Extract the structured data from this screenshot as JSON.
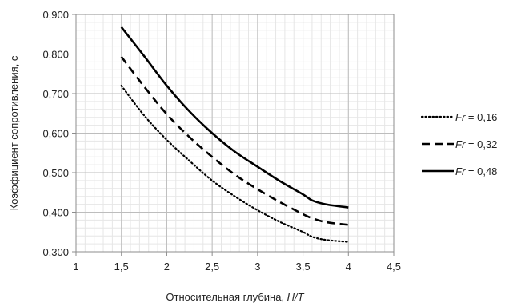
{
  "chart_data": {
    "type": "line",
    "title": "",
    "xlabel": "Относительная глубина, H/T",
    "xlabel_parts": [
      "Относительная глубина, ",
      "H/T"
    ],
    "ylabel": "Коэффициент сопротивления, с",
    "xlim": [
      1,
      4.5
    ],
    "ylim": [
      0.3,
      0.9
    ],
    "x_major_ticks": [
      1,
      1.5,
      2,
      2.5,
      3,
      3.5,
      4,
      4.5
    ],
    "x_tick_labels": [
      "1",
      "1,5",
      "2",
      "2,5",
      "3",
      "3,5",
      "4",
      "4,5"
    ],
    "y_major_ticks": [
      0.3,
      0.4,
      0.5,
      0.6,
      0.7,
      0.8,
      0.9
    ],
    "y_tick_labels": [
      "0,300",
      "0,400",
      "0,500",
      "0,600",
      "0,700",
      "0,800",
      "0,900"
    ],
    "x_minor_step": 0.1,
    "y_minor_step": 0.02,
    "grid": true,
    "legend_position": "right",
    "series": [
      {
        "name": "Fr = 0,16",
        "label_var": "Fr",
        "label_value": " = 0,16",
        "style": "dotted",
        "color": "#000000",
        "x": [
          1.5,
          1.75,
          2.0,
          2.25,
          2.5,
          2.75,
          3.0,
          3.25,
          3.5,
          3.6,
          3.75,
          4.0
        ],
        "y": [
          0.72,
          0.645,
          0.583,
          0.53,
          0.48,
          0.44,
          0.405,
          0.375,
          0.35,
          0.338,
          0.33,
          0.325
        ]
      },
      {
        "name": "Fr = 0,32",
        "label_var": "Fr",
        "label_value": " = 0,32",
        "style": "dashed",
        "color": "#000000",
        "x": [
          1.5,
          1.75,
          2.0,
          2.25,
          2.5,
          2.75,
          3.0,
          3.25,
          3.5,
          3.6,
          3.75,
          4.0
        ],
        "y": [
          0.793,
          0.718,
          0.648,
          0.59,
          0.54,
          0.495,
          0.458,
          0.425,
          0.395,
          0.385,
          0.375,
          0.368
        ]
      },
      {
        "name": "Fr = 0,48",
        "label_var": "Fr",
        "label_value": " = 0,48",
        "style": "solid",
        "color": "#000000",
        "x": [
          1.5,
          1.75,
          2.0,
          2.25,
          2.5,
          2.75,
          3.0,
          3.25,
          3.5,
          3.6,
          3.75,
          4.0
        ],
        "y": [
          0.868,
          0.795,
          0.72,
          0.655,
          0.6,
          0.553,
          0.515,
          0.478,
          0.445,
          0.43,
          0.42,
          0.412
        ]
      }
    ]
  }
}
